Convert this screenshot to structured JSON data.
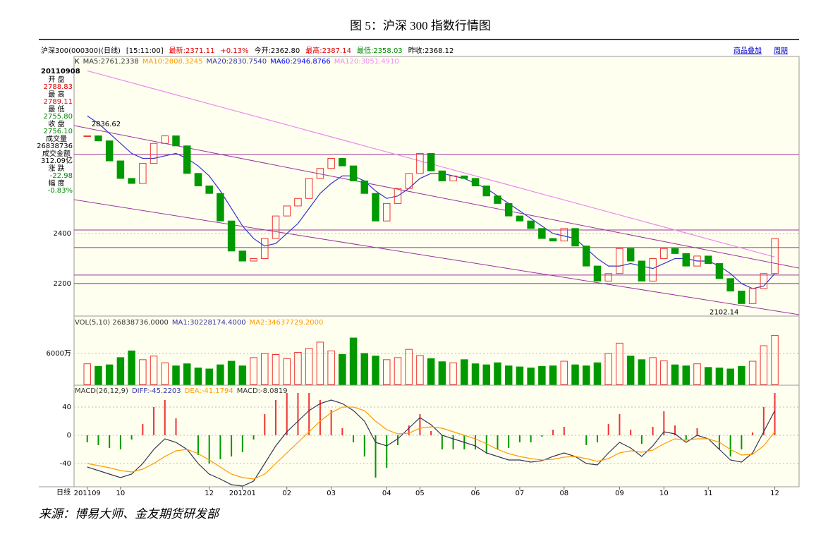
{
  "figure": {
    "title": "图 5：沪深 300 指数行情图",
    "caption": "来源：博易大师、金友期货研发部"
  },
  "header": {
    "items": [
      {
        "text": "沪深300(000300)(日线)",
        "color": "#000"
      },
      {
        "text": "[15:11:00]",
        "color": "#000"
      },
      {
        "text": "最新:2371.11",
        "color": "#d00"
      },
      {
        "text": "+0.13%",
        "color": "#d00"
      },
      {
        "text": "今开:2362.80",
        "color": "#000"
      },
      {
        "text": "最高:2387.14",
        "color": "#d00"
      },
      {
        "text": "最低:2358.03",
        "color": "#080"
      },
      {
        "text": "昨收:2368.12",
        "color": "#000"
      }
    ],
    "links": [
      "商品叠加",
      "周期"
    ]
  },
  "info": {
    "date": "20110908",
    "items": [
      {
        "label": "开 盘",
        "value": "2788.83",
        "color": "#d00"
      },
      {
        "label": "最 高",
        "value": "2789.11",
        "color": "#d00"
      },
      {
        "label": "最 低",
        "value": "2755.80",
        "color": "#080"
      },
      {
        "label": "收 盘",
        "value": "2756.10",
        "color": "#080"
      },
      {
        "label": "成交量",
        "value": "26838736",
        "color": "#000"
      },
      {
        "label": "成交金额",
        "value": "312.09亿",
        "color": "#000"
      },
      {
        "label": "涨 跌",
        "value": "-22.98",
        "color": "#080"
      },
      {
        "label": "幅 度",
        "value": "-0.83%",
        "color": "#080"
      }
    ]
  },
  "chart_data": [
    {
      "type": "line",
      "xlim": [
        -1,
        64
      ],
      "ylim": [
        2073,
        3065
      ],
      "yticks": [
        2200,
        2400
      ],
      "legend": [
        {
          "text": "K",
          "color": "#000"
        },
        {
          "text": "MA5:2761.2338",
          "color": "#333"
        },
        {
          "text": "MA10:2808.3245",
          "color": "#f90"
        },
        {
          "text": "MA20:2830.7540",
          "color": "#33a"
        },
        {
          "text": "MA60:2946.8766",
          "color": "#00f"
        },
        {
          "text": "MA120:3051.4910",
          "color": "#e8e"
        }
      ],
      "color": "#e33",
      "values": [
        2790,
        2770,
        2690,
        2620,
        2600,
        2680,
        2760,
        2790,
        2750,
        2640,
        2590,
        2560,
        2450,
        2330,
        2290,
        2300,
        2380,
        2470,
        2510,
        2540,
        2620,
        2660,
        2700,
        2670,
        2610,
        2560,
        2450,
        2520,
        2580,
        2640,
        2720,
        2650,
        2610,
        2630,
        2620,
        2590,
        2550,
        2520,
        2470,
        2450,
        2420,
        2380,
        2370,
        2420,
        2350,
        2270,
        2210,
        2240,
        2340,
        2290,
        2210,
        2300,
        2340,
        2320,
        2270,
        2310,
        2280,
        2220,
        2170,
        2120,
        2180,
        2240,
        2380
      ],
      "series": [
        {
          "color": "#33c",
          "values": [
            2870,
            2840,
            2800,
            2760,
            2720,
            2700,
            2700,
            2710,
            2720,
            2700,
            2670,
            2630,
            2570,
            2500,
            2430,
            2380,
            2350,
            2360,
            2400,
            2440,
            2500,
            2560,
            2600,
            2630,
            2630,
            2610,
            2570,
            2540,
            2550,
            2580,
            2620,
            2640,
            2640,
            2630,
            2620,
            2600,
            2580,
            2550,
            2520,
            2490,
            2460,
            2430,
            2400,
            2390,
            2380,
            2340,
            2300,
            2270,
            2270,
            2280,
            2270,
            2260,
            2280,
            2300,
            2300,
            2290,
            2290,
            2270,
            2240,
            2200,
            2180,
            2190,
            2240
          ]
        },
        {
          "color": "#e8e",
          "values": [
            3050,
            3038,
            3026,
            3014,
            3002,
            2990,
            2978,
            2966,
            2954,
            2942,
            2930,
            2918,
            2906,
            2894,
            2882,
            2870,
            2858,
            2846,
            2834,
            2822,
            2810,
            2798,
            2786,
            2774,
            2762,
            2750,
            2738,
            2726,
            2714,
            2702,
            2690,
            2678,
            2666,
            2654,
            2642,
            2630,
            2618,
            2606,
            2594,
            2582,
            2570,
            2558,
            2546,
            2534,
            2522,
            2510,
            2498,
            2486,
            2474,
            2462,
            2450,
            2438,
            2426,
            2414,
            2402,
            2390,
            2378,
            2366,
            2354,
            2342,
            2330,
            2318,
            2306
          ]
        }
      ],
      "hlines": [
        2716,
        2414,
        2344,
        2234,
        2200
      ],
      "hline_color": "#939",
      "max_label": 2836.62,
      "min_label": 2102.14
    },
    {
      "type": "bar",
      "xlim": [
        -1,
        64
      ],
      "ylim": [
        0,
        11875
      ],
      "yticks": [
        {
          "value": 6000,
          "label": "6000万"
        }
      ],
      "legend": [
        {
          "text": "VOL(5,10) 26838736.0000",
          "color": "#333"
        },
        {
          "text": "MA1:30228174.4000",
          "color": "#33a"
        },
        {
          "text": "MA2:34637729.2000",
          "color": "#f90"
        }
      ],
      "up_color": "#e33",
      "down_color": "#090",
      "values": [
        4000,
        3500,
        3800,
        5200,
        6500,
        4800,
        5500,
        4200,
        3600,
        4000,
        3200,
        3000,
        3800,
        4500,
        3600,
        5200,
        6000,
        5800,
        5000,
        6200,
        7000,
        8200,
        6500,
        5800,
        9000,
        6000,
        5500,
        4800,
        5200,
        6800,
        5600,
        5000,
        4400,
        4200,
        4800,
        4000,
        3800,
        4200,
        3600,
        3400,
        3200,
        3500,
        3600,
        4500,
        3800,
        3600,
        4200,
        6000,
        8000,
        5500,
        4800,
        5200,
        4600,
        3800,
        3600,
        4000,
        3300,
        3200,
        3000,
        3500,
        4500,
        7500,
        9500
      ]
    },
    {
      "type": "macd",
      "xlim": [
        -1,
        64
      ],
      "ylim": [
        -73,
        62
      ],
      "yticks": [
        -40,
        0,
        40
      ],
      "x_lead": "日线",
      "xticks": [
        {
          "value": 0,
          "label": "201109"
        },
        {
          "value": 3,
          "label": "10"
        },
        {
          "value": 11,
          "label": "12"
        },
        {
          "value": 14,
          "label": "201201"
        },
        {
          "value": 18,
          "label": "02"
        },
        {
          "value": 22,
          "label": "03"
        },
        {
          "value": 27,
          "label": "04"
        },
        {
          "value": 30,
          "label": "05"
        },
        {
          "value": 35,
          "label": "06"
        },
        {
          "value": 39,
          "label": "07"
        },
        {
          "value": 43,
          "label": "08"
        },
        {
          "value": 48,
          "label": "09"
        },
        {
          "value": 52,
          "label": "10"
        },
        {
          "value": 56,
          "label": "11"
        },
        {
          "value": 62,
          "label": "12"
        }
      ],
      "legend": [
        {
          "text": "MACD(26,12,9)",
          "color": "#333"
        },
        {
          "text": "DIFF:-45.2203",
          "color": "#33a"
        },
        {
          "text": "DEA:-41.1794",
          "color": "#f90"
        },
        {
          "text": "MACD:-8.0819",
          "color": "#333"
        }
      ],
      "up_color": "#e33",
      "down_color": "#090",
      "values": [
        -10,
        -14,
        -18,
        -20,
        -6,
        16,
        40,
        50,
        24,
        0,
        -28,
        -40,
        -34,
        -30,
        -24,
        -6,
        30,
        50,
        60,
        60,
        60,
        50,
        36,
        10,
        -10,
        -30,
        -60,
        -46,
        -14,
        14,
        30,
        6,
        -20,
        -20,
        -20,
        -20,
        -26,
        -20,
        -18,
        -10,
        -10,
        -2,
        8,
        12,
        0,
        -14,
        -10,
        16,
        30,
        8,
        -12,
        12,
        34,
        14,
        -6,
        10,
        0,
        -20,
        -30,
        -20,
        4,
        40,
        60
      ],
      "series": [
        {
          "color": "#335",
          "values": [
            -45,
            -50,
            -55,
            -60,
            -55,
            -40,
            -20,
            -5,
            -10,
            -20,
            -40,
            -55,
            -62,
            -70,
            -72,
            -65,
            -40,
            -15,
            5,
            20,
            35,
            45,
            50,
            45,
            35,
            20,
            -10,
            -15,
            -5,
            10,
            25,
            15,
            0,
            -5,
            -10,
            -15,
            -25,
            -30,
            -35,
            -35,
            -38,
            -36,
            -30,
            -25,
            -30,
            -40,
            -42,
            -25,
            -10,
            -18,
            -30,
            -15,
            5,
            2,
            -10,
            0,
            -5,
            -20,
            -35,
            -38,
            -25,
            5,
            35
          ]
        },
        {
          "color": "#f90",
          "values": [
            -40,
            -43,
            -46,
            -50,
            -52,
            -48,
            -40,
            -30,
            -22,
            -20,
            -26,
            -35,
            -45,
            -55,
            -60,
            -62,
            -55,
            -40,
            -25,
            -10,
            5,
            20,
            32,
            40,
            40,
            35,
            20,
            8,
            2,
            3,
            10,
            12,
            10,
            5,
            0,
            -5,
            -12,
            -20,
            -26,
            -30,
            -33,
            -35,
            -34,
            -31,
            -30,
            -33,
            -37,
            -33,
            -25,
            -22,
            -24,
            -21,
            -12,
            -5,
            -7,
            -5,
            -5,
            -10,
            -20,
            -28,
            -27,
            -15,
            5
          ]
        }
      ]
    }
  ]
}
